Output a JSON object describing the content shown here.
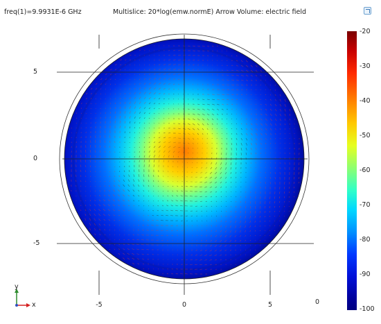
{
  "header": {
    "frequency": "freq(1)=9.9931E-6 GHz",
    "plot_title": "Multislice: 20*log(emw.normE)  Arrow Volume: electric field"
  },
  "axes": {
    "y_ticks": [
      "5",
      "0",
      "-5"
    ],
    "x_ticks": [
      "-5",
      "0",
      "5",
      "0"
    ]
  },
  "colorbar": {
    "labels": [
      "-20",
      "-30",
      "-40",
      "-50",
      "-60",
      "-70",
      "-80",
      "-90",
      "-100"
    ],
    "colormap": "jet",
    "max_color": "#800000",
    "min_color": "#000080"
  },
  "triad": {
    "y_label": "y",
    "x_label": "x",
    "y_color": "#2e8b2e",
    "x_color": "#d42020"
  },
  "arrow_color": "#c84040"
}
